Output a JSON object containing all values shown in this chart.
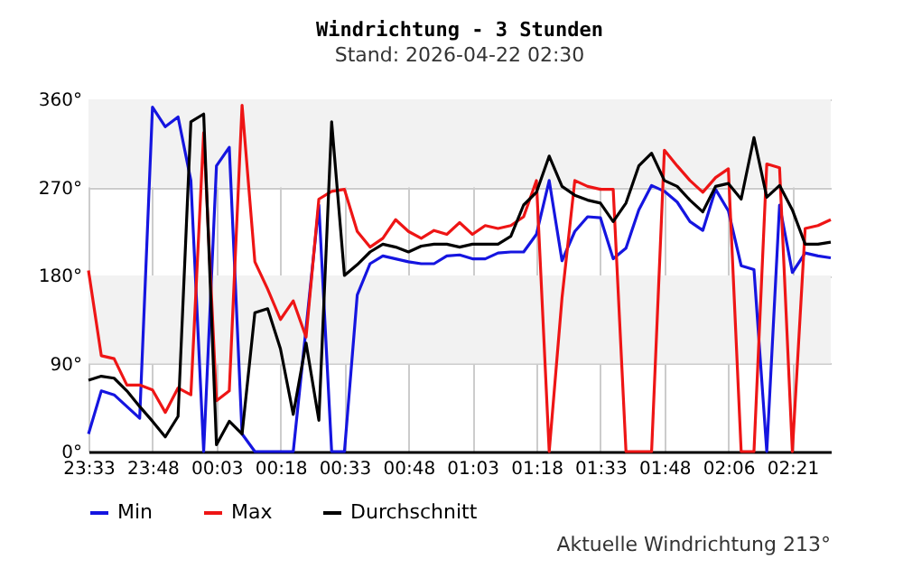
{
  "chart_data": {
    "type": "line",
    "title": "Windrichtung - 3 Stunden",
    "subtitle": "Stand: 2026-04-22 02:30",
    "categories": [
      "23:33",
      null,
      null,
      null,
      null,
      "23:48",
      null,
      null,
      null,
      null,
      "00:03",
      null,
      null,
      null,
      null,
      "00:18",
      null,
      null,
      null,
      null,
      "00:33",
      null,
      null,
      null,
      null,
      "00:48",
      null,
      null,
      null,
      null,
      "01:03",
      null,
      null,
      null,
      null,
      "01:18",
      null,
      null,
      null,
      null,
      "01:33",
      null,
      null,
      null,
      null,
      "01:48",
      null,
      null,
      null,
      null,
      "02:06",
      null,
      null,
      null,
      null,
      "02:21",
      null,
      null,
      null
    ],
    "series": [
      {
        "name": "Min",
        "color": "#1515e0",
        "values": [
          18,
          62,
          58,
          46,
          34,
          352,
          332,
          342,
          277,
          0,
          292,
          311,
          18,
          0,
          0,
          0,
          0,
          126,
          252,
          0,
          0,
          160,
          192,
          200,
          197,
          194,
          192,
          192,
          200,
          201,
          197,
          197,
          203,
          204,
          204,
          222,
          277,
          195,
          225,
          240,
          239,
          197,
          208,
          247,
          272,
          266,
          255,
          235,
          226,
          268,
          246,
          190,
          186,
          0,
          252,
          183,
          203,
          200,
          198
        ]
      },
      {
        "name": "Max",
        "color": "#ee1515",
        "values": [
          185,
          98,
          95,
          68,
          68,
          63,
          40,
          65,
          58,
          326,
          52,
          62,
          354,
          194,
          166,
          135,
          154,
          117,
          258,
          266,
          268,
          225,
          209,
          218,
          237,
          225,
          218,
          226,
          222,
          234,
          222,
          231,
          228,
          231,
          240,
          277,
          0,
          157,
          277,
          271,
          268,
          268,
          0,
          0,
          0,
          308,
          292,
          277,
          265,
          280,
          289,
          0,
          0,
          294,
          290,
          0,
          228,
          231,
          237
        ]
      },
      {
        "name": "Durchschnitt",
        "color": "#000000",
        "values": [
          73,
          77,
          75,
          62,
          46,
          31,
          15,
          36,
          337,
          345,
          7,
          31,
          18,
          142,
          146,
          105,
          38,
          111,
          32,
          337,
          180,
          191,
          204,
          212,
          209,
          204,
          210,
          212,
          212,
          209,
          212,
          212,
          212,
          220,
          252,
          265,
          302,
          271,
          262,
          257,
          254,
          235,
          254,
          292,
          305,
          277,
          271,
          257,
          245,
          271,
          274,
          258,
          321,
          260,
          272,
          247,
          212,
          212,
          214
        ]
      }
    ],
    "ylim": [
      0,
      360
    ],
    "yticks": [
      {
        "value": 0,
        "label": "0°"
      },
      {
        "value": 90,
        "label": "90°"
      },
      {
        "value": 180,
        "label": "180°"
      },
      {
        "value": 270,
        "label": "270°"
      },
      {
        "value": 360,
        "label": "360°"
      }
    ],
    "bands": [
      {
        "axis": "y",
        "from": 90,
        "to": 180,
        "color": "#f2f2f2"
      },
      {
        "axis": "y",
        "from": 270,
        "to": 360,
        "color": "#f2f2f2"
      }
    ],
    "grid": true,
    "legend": "bottom",
    "annotations": [
      "Aktuelle Windrichtung 213°"
    ]
  }
}
